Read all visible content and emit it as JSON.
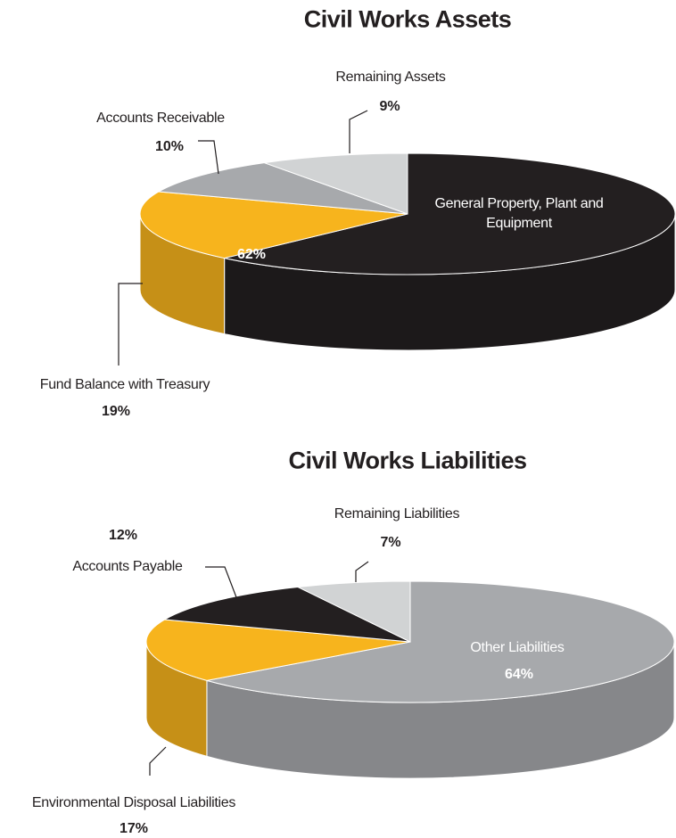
{
  "chart_data": [
    {
      "type": "pie",
      "title": "Civil Works Assets",
      "categories": [
        "General Property, Plant and Equipment",
        "Fund Balance with Treasury",
        "Accounts Receivable",
        "Remaining Assets"
      ],
      "values": [
        62,
        19,
        10,
        9
      ],
      "value_labels": [
        "62%",
        "19%",
        "10%",
        "9%"
      ],
      "colors": [
        "#231f20",
        "#f7b41d",
        "#a7a9ac",
        "#d1d3d4"
      ]
    },
    {
      "type": "pie",
      "title": "Civil Works Liabilities",
      "categories": [
        "Other Liabilities",
        "Environmental Disposal Liabilities",
        "Accounts Payable",
        "Remaining Liabilities"
      ],
      "values": [
        64,
        17,
        12,
        7
      ],
      "value_labels": [
        "64%",
        "17%",
        "12%",
        "7%"
      ],
      "colors": [
        "#a7a9ac",
        "#f7b41d",
        "#231f20",
        "#d1d3d4"
      ]
    }
  ]
}
